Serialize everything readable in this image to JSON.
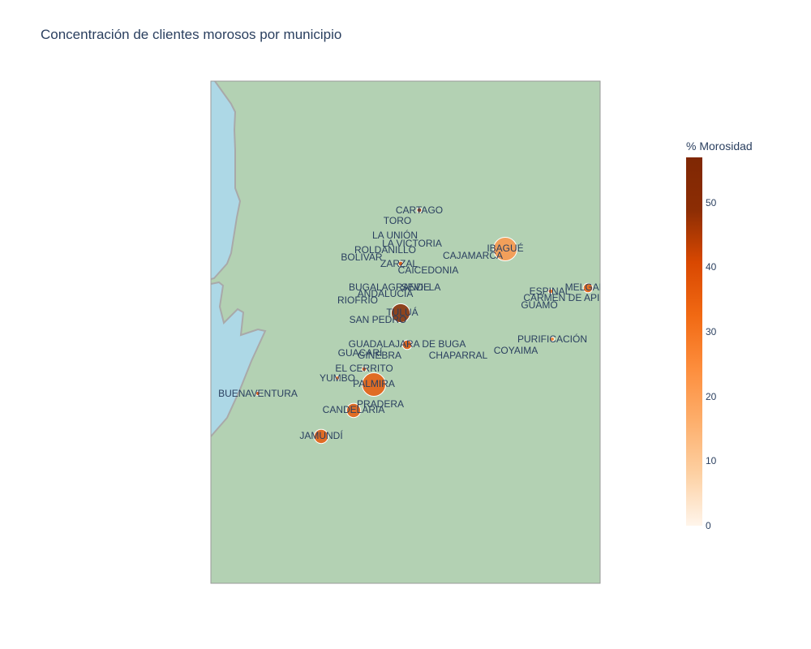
{
  "title": "Concentración de clientes morosos por municipio",
  "colorbar": {
    "title": "% Morosidad",
    "ticks": [
      "0",
      "10",
      "20",
      "30",
      "40",
      "50"
    ],
    "min": 0,
    "max": 57,
    "colors": [
      "#fff5eb",
      "#fdd0a2",
      "#fdae6b",
      "#fd8d3c",
      "#f16913",
      "#d94801",
      "#8c2d04",
      "#7f2704"
    ]
  },
  "map": {
    "land_color": "#b3d1b3",
    "ocean_color": "#add8e6",
    "coast_color": "#a9a9a9"
  },
  "chart_data": {
    "type": "scatter",
    "title": "Concentración de clientes morosos por municipio",
    "color_label": "% Morosidad",
    "points": [
      {
        "name": "CARTAGO",
        "morosidad": 48,
        "size": 1
      },
      {
        "name": "TORO",
        "morosidad": 0,
        "size": 0
      },
      {
        "name": "LA UNIÓN",
        "morosidad": 0,
        "size": 0
      },
      {
        "name": "LA VICTORIA",
        "morosidad": 0,
        "size": 0
      },
      {
        "name": "ROLDANILLO",
        "morosidad": 0,
        "size": 0
      },
      {
        "name": "BOLIVAR",
        "morosidad": 0,
        "size": 0
      },
      {
        "name": "ZARZAL",
        "morosidad": 40,
        "size": 1
      },
      {
        "name": "CAICEDONIA",
        "morosidad": 0,
        "size": 0
      },
      {
        "name": "IBAGUÉ",
        "morosidad": 22,
        "size": 5
      },
      {
        "name": "CAJAMARCA",
        "morosidad": 0,
        "size": 0
      },
      {
        "name": "BUGALAGRANDE",
        "morosidad": 0,
        "size": 0
      },
      {
        "name": "SEVILLA",
        "morosidad": 0,
        "size": 0
      },
      {
        "name": "ANDALUCÍA",
        "morosidad": 0,
        "size": 0
      },
      {
        "name": "RIOFRIO",
        "morosidad": 0,
        "size": 0
      },
      {
        "name": "TULUÁ",
        "morosidad": 52,
        "size": 4
      },
      {
        "name": "SAN PEDRO",
        "morosidad": 0,
        "size": 0
      },
      {
        "name": "ESPINAL",
        "morosidad": 32,
        "size": 1
      },
      {
        "name": "MELGAR",
        "morosidad": 35,
        "size": 2
      },
      {
        "name": "CARMEN DE APICALÁ",
        "morosidad": 0,
        "size": 0
      },
      {
        "name": "GUAMO",
        "morosidad": 0,
        "size": 0
      },
      {
        "name": "PURIFICACIÓN",
        "morosidad": 28,
        "size": 0.5
      },
      {
        "name": "COYAIMA",
        "morosidad": 0,
        "size": 0
      },
      {
        "name": "GUADALAJARA DE BUGA",
        "morosidad": 38,
        "size": 2
      },
      {
        "name": "GUACARÍ",
        "morosidad": 0,
        "size": 0
      },
      {
        "name": "GINEBRA",
        "morosidad": 0,
        "size": 0
      },
      {
        "name": "CHAPARRAL",
        "morosidad": 0,
        "size": 0
      },
      {
        "name": "EL CERRITO",
        "morosidad": 36,
        "size": 1
      },
      {
        "name": "YUMBO",
        "morosidad": 30,
        "size": 0.5
      },
      {
        "name": "PALMIRA",
        "morosidad": 36,
        "size": 5
      },
      {
        "name": "BUENAVENTURA",
        "morosidad": 40,
        "size": 0.5
      },
      {
        "name": "PRADERA",
        "morosidad": 0,
        "size": 0
      },
      {
        "name": "CANDELARIA",
        "morosidad": 36,
        "size": 3
      },
      {
        "name": "JAMUNDÍ",
        "morosidad": 36,
        "size": 3
      }
    ]
  }
}
